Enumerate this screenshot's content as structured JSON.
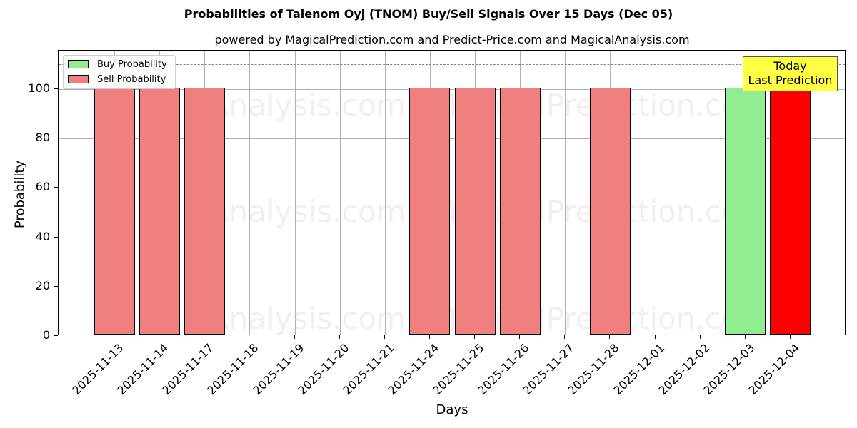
{
  "header": {
    "title": "Probabilities of Talenom Oyj (TNOM) Buy/Sell Signals Over 15 Days (Dec 05)",
    "subtitle": "powered by MagicalPrediction.com and Predict-Price.com and MagicalAnalysis.com"
  },
  "legend": {
    "buy_label": "Buy Probability",
    "sell_label": "Sell Probability"
  },
  "annotation": {
    "line1": "Today",
    "line2": "Last Prediction"
  },
  "axes": {
    "xlabel": "Days",
    "ylabel": "Probability",
    "yticks": [
      "0",
      "20",
      "40",
      "60",
      "80",
      "100"
    ]
  },
  "watermarks": [
    "MagicalAnalysis.com",
    "MagicalPrediction.com"
  ],
  "colors": {
    "buy": "#90ee90",
    "sell": "#f08080",
    "last_sell": "#ff0000",
    "annotation_bg": "#ffff44"
  },
  "chart_data": {
    "type": "bar",
    "title": "Probabilities of Talenom Oyj (TNOM) Buy/Sell Signals Over 15 Days (Dec 05)",
    "subtitle": "powered by MagicalPrediction.com and Predict-Price.com and MagicalAnalysis.com",
    "xlabel": "Days",
    "ylabel": "Probability",
    "ylim": [
      0,
      115
    ],
    "yticks": [
      0,
      20,
      40,
      60,
      80,
      100
    ],
    "grid": true,
    "legend_position": "upper left",
    "reference_line": {
      "y": 110,
      "style": "dashed",
      "color": "#808080"
    },
    "categories": [
      "2025-11-13",
      "2025-11-14",
      "2025-11-17",
      "2025-11-18",
      "2025-11-19",
      "2025-11-20",
      "2025-11-21",
      "2025-11-24",
      "2025-11-25",
      "2025-11-26",
      "2025-11-27",
      "2025-11-28",
      "2025-12-01",
      "2025-12-02",
      "2025-12-03",
      "2025-12-04"
    ],
    "series": [
      {
        "name": "Buy Probability",
        "color": "#90ee90",
        "values": [
          0,
          0,
          0,
          0,
          0,
          0,
          0,
          0,
          0,
          0,
          0,
          0,
          0,
          0,
          100,
          0
        ]
      },
      {
        "name": "Sell Probability",
        "color": "#f08080",
        "values": [
          100,
          100,
          100,
          0,
          0,
          0,
          0,
          100,
          100,
          100,
          0,
          100,
          0,
          0,
          0,
          100
        ]
      }
    ],
    "highlight": {
      "category": "2025-12-04",
      "series": "Sell Probability",
      "color": "#ff0000"
    },
    "annotations": [
      {
        "text": "Today\nLast Prediction",
        "category": "2025-12-04",
        "background": "#ffff44"
      }
    ]
  }
}
